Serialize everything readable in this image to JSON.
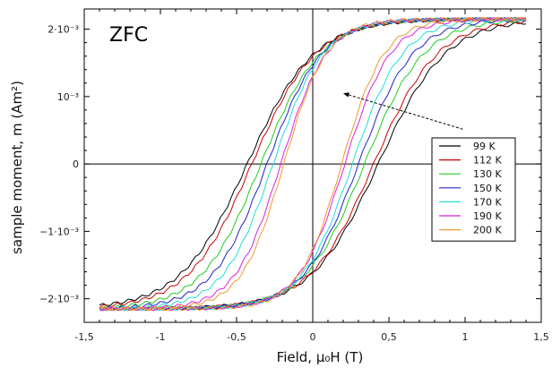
{
  "chart_data": {
    "type": "line",
    "panel_label": "ZFC",
    "xlabel": "Field, μ₀H (T)",
    "ylabel": "sample moment, m (Am²)",
    "xlim": [
      -1.5,
      1.5
    ],
    "ylim": [
      -0.00235,
      0.0023
    ],
    "x_ticks": [
      {
        "value": -1.5,
        "label": "-1,5"
      },
      {
        "value": -1,
        "label": "-1"
      },
      {
        "value": -0.5,
        "label": "-0,5"
      },
      {
        "value": 0,
        "label": "0"
      },
      {
        "value": 0.5,
        "label": "0,5"
      },
      {
        "value": 1,
        "label": "1"
      },
      {
        "value": 1.5,
        "label": "1,5"
      }
    ],
    "y_ticks": [
      {
        "value": 0.002,
        "label": "2·10⁻³"
      },
      {
        "value": 0.001,
        "label": "10⁻³"
      },
      {
        "value": 0,
        "label": "0"
      },
      {
        "value": -0.001,
        "label": "−1·10⁻³"
      },
      {
        "value": -0.002,
        "label": "−2·10⁻³"
      }
    ],
    "legend_position": "right",
    "arrow_annotation": {
      "from": [
        0.75,
        0.00025
      ],
      "to": [
        0.2,
        0.00105
      ]
    },
    "field_range": [
      -1.4,
      1.4
    ],
    "saturation": 0.00215,
    "series": [
      {
        "name": "99 K",
        "color": "#000000",
        "coercive_field": 0.43,
        "width": 0.44
      },
      {
        "name": "112 K",
        "color": "#cc0000",
        "coercive_field": 0.4,
        "width": 0.42
      },
      {
        "name": "130 K",
        "color": "#22cc22",
        "coercive_field": 0.34,
        "width": 0.39
      },
      {
        "name": "150 K",
        "color": "#2222cc",
        "coercive_field": 0.3,
        "width": 0.36
      },
      {
        "name": "170 K",
        "color": "#22dddd",
        "coercive_field": 0.26,
        "width": 0.33
      },
      {
        "name": "190 K",
        "color": "#dd22dd",
        "coercive_field": 0.21,
        "width": 0.3
      },
      {
        "name": "200 K",
        "color": "#ee9933",
        "coercive_field": 0.19,
        "width": 0.28
      }
    ]
  }
}
